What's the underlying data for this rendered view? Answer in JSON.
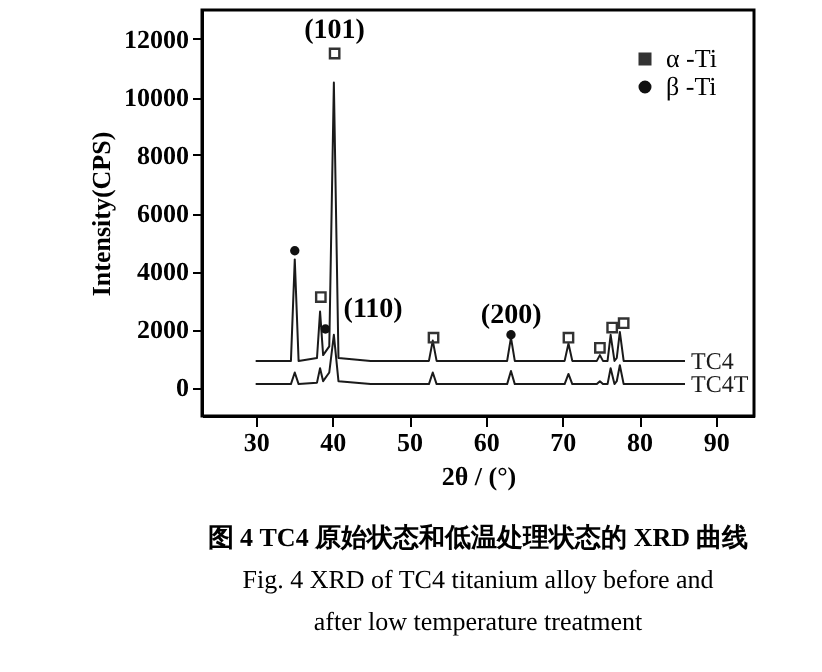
{
  "chart_data": {
    "type": "line",
    "title": "图 4  TC4 原始状态和低温处理状态的 XRD 曲线",
    "subtitle": "Fig. 4  XRD of TC4 titanium alloy before and after low temperature treatment",
    "xlabel": "2θ / (°)",
    "ylabel": "Intensity(CPS)",
    "xlim": [
      23,
      95
    ],
    "xticks": [
      30,
      40,
      50,
      60,
      70,
      80,
      90
    ],
    "ylim": [
      -1000,
      13000
    ],
    "yticks": [
      0,
      2000,
      4000,
      6000,
      8000,
      10000,
      12000
    ],
    "grid": false,
    "legend": "top right",
    "series": [
      {
        "name": "TC4",
        "color": "#1a1a1a",
        "x": [
          30,
          34.6,
          35.1,
          35.6,
          38.0,
          38.4,
          38.8,
          39.6,
          40.2,
          40.8,
          45,
          52.6,
          53.1,
          53.6,
          62.8,
          63.3,
          63.8,
          70.3,
          70.8,
          71.3,
          74.5,
          74.9,
          75.3,
          75.9,
          76.3,
          76.8,
          77.1,
          77.5,
          78,
          86
        ],
        "values": [
          900,
          900,
          4400,
          900,
          1000,
          2600,
          1100,
          1400,
          10500,
          1000,
          900,
          900,
          1600,
          900,
          900,
          1700,
          900,
          900,
          1500,
          900,
          900,
          1100,
          900,
          900,
          1800,
          900,
          1000,
          1900,
          900,
          900
        ]
      },
      {
        "name": "TC4T",
        "color": "#1a1a1a",
        "x": [
          30,
          34.6,
          35.1,
          35.6,
          38.0,
          38.4,
          38.8,
          39.6,
          40.2,
          40.8,
          45,
          52.6,
          53.1,
          53.6,
          62.8,
          63.3,
          63.8,
          70.3,
          70.8,
          71.3,
          74.5,
          74.9,
          75.3,
          75.9,
          76.3,
          76.8,
          77.1,
          77.5,
          78,
          86
        ],
        "values": [
          100,
          100,
          500,
          100,
          150,
          650,
          200,
          500,
          1800,
          200,
          100,
          100,
          500,
          100,
          100,
          550,
          100,
          100,
          450,
          100,
          100,
          200,
          100,
          100,
          650,
          100,
          200,
          750,
          100,
          100
        ]
      },
      {
        "name": "α -Ti",
        "type": "scatter",
        "marker": "square",
        "color": "#333333",
        "x": [
          38.5,
          40.3,
          53.2,
          70.8,
          74.9,
          76.5,
          78.0
        ],
        "values": [
          3100,
          11500,
          1700,
          1700,
          1350,
          2050,
          2200
        ]
      },
      {
        "name": "β -Ti",
        "type": "scatter",
        "marker": "circle",
        "color": "#111111",
        "x": [
          35.1,
          39.1,
          63.3
        ],
        "values": [
          4700,
          2000,
          1800
        ]
      }
    ],
    "annotations": [
      "(101)",
      "(110)",
      "(200)"
    ]
  }
}
